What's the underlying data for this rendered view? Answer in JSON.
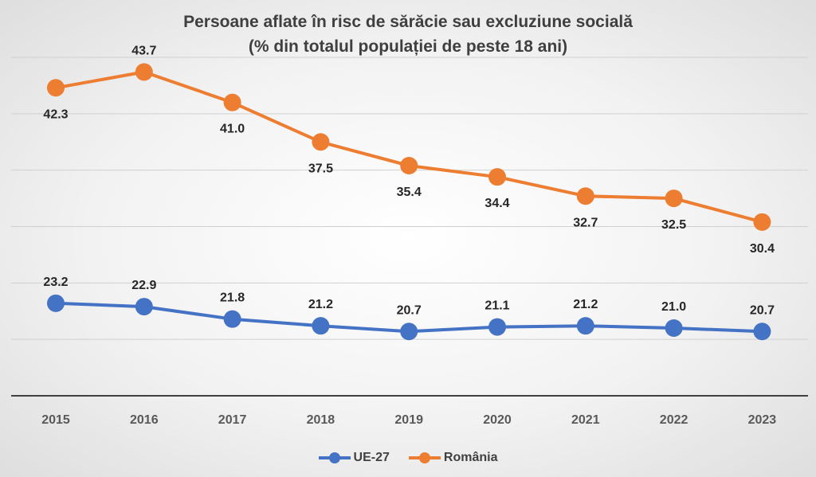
{
  "chart_data": {
    "type": "line",
    "title": "Persoane aflate în risc de sărăcie sau excluziune socială",
    "subtitle": "(% din totalul populației de peste 18 ani)",
    "categories": [
      "2015",
      "2016",
      "2017",
      "2018",
      "2019",
      "2020",
      "2021",
      "2022",
      "2023"
    ],
    "series": [
      {
        "name": "UE-27",
        "color": "#4472c4",
        "values": [
          23.2,
          22.9,
          21.8,
          21.2,
          20.7,
          21.1,
          21.2,
          21.0,
          20.7
        ],
        "labels": [
          "23.2",
          "22.9",
          "21.8",
          "21.2",
          "20.7",
          "21.1",
          "21.2",
          "21.0",
          "20.7"
        ]
      },
      {
        "name": "România",
        "color": "#ed7d31",
        "values": [
          42.3,
          43.7,
          41.0,
          37.5,
          35.4,
          34.4,
          32.7,
          32.5,
          30.4
        ],
        "labels": [
          "42.3",
          "43.7",
          "41.0",
          "37.5",
          "35.4",
          "34.4",
          "32.7",
          "32.5",
          "30.4"
        ]
      }
    ],
    "ylim": [
      15,
      45
    ],
    "y_gridlines": [
      20,
      25,
      30,
      35,
      40,
      45
    ],
    "grid": true,
    "legend_position": "bottom"
  }
}
